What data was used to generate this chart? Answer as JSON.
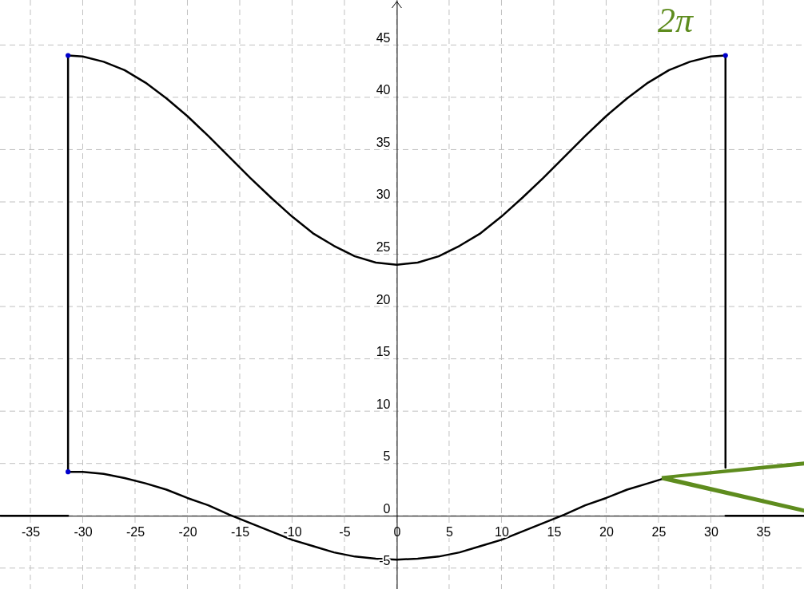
{
  "chart_data": {
    "type": "line",
    "xlim": [
      -37.9,
      38.9
    ],
    "ylim": [
      -7.0,
      49.3
    ],
    "xticks": [
      -35,
      -30,
      -25,
      -20,
      -15,
      -10,
      -5,
      0,
      5,
      10,
      15,
      20,
      25,
      30,
      35
    ],
    "yticks": [
      -5,
      0,
      5,
      10,
      15,
      20,
      25,
      30,
      35,
      40,
      45
    ],
    "grid": true,
    "line_style": "solid",
    "annotations": [
      "2π"
    ],
    "series": [
      {
        "color": "#000000",
        "x": [
          -31.4,
          -30,
          -28,
          -26,
          -24,
          -22,
          -20,
          -18,
          -16,
          -14,
          -12,
          -10,
          -8,
          -6,
          -4,
          -2,
          0,
          2,
          4,
          6,
          8,
          10,
          12,
          14,
          16,
          18,
          20,
          22,
          24,
          26,
          28,
          30,
          31.4
        ],
        "values": [
          44.0,
          43.9,
          43.4,
          42.6,
          41.4,
          39.9,
          38.2,
          36.3,
          34.3,
          32.3,
          30.4,
          28.6,
          27.0,
          25.8,
          24.8,
          24.2,
          24.0,
          24.2,
          24.8,
          25.8,
          27.0,
          28.6,
          30.4,
          32.3,
          34.3,
          36.3,
          38.2,
          39.9,
          41.4,
          42.6,
          43.4,
          43.9,
          44.0
        ]
      },
      {
        "color": "#000000",
        "x": [
          -31.4,
          -30,
          -28,
          -26,
          -24,
          -22,
          -20,
          -18,
          -16,
          -14,
          -12,
          -10,
          -8,
          -6,
          -4,
          -2,
          0,
          2,
          4,
          6,
          8,
          10,
          12,
          14,
          16,
          18,
          20,
          22,
          24,
          25.3
        ],
        "values": [
          4.2,
          4.2,
          4.0,
          3.6,
          3.1,
          2.5,
          1.7,
          1.0,
          0.1,
          -0.7,
          -1.5,
          -2.3,
          -2.9,
          -3.5,
          -3.9,
          -4.1,
          -4.2,
          -4.1,
          -3.9,
          -3.5,
          -2.9,
          -2.3,
          -1.5,
          -0.7,
          0.1,
          1.0,
          1.7,
          2.5,
          3.1,
          3.5
        ]
      },
      {
        "color": "#000000",
        "x": [
          -31.4,
          -31.4
        ],
        "values": [
          4.2,
          44.0
        ]
      },
      {
        "color": "#000000",
        "x": [
          31.4,
          31.4
        ],
        "values": [
          4.6,
          44.0
        ]
      },
      {
        "color": "#000000",
        "x": [
          -37.9,
          -31.4
        ],
        "values": [
          0,
          0
        ]
      },
      {
        "color": "#000000",
        "x": [
          31.4,
          38.9
        ],
        "values": [
          0,
          0
        ]
      },
      {
        "type": "scatter",
        "marker": "circle",
        "color": "#0000cc",
        "x": [
          -31.4,
          -31.4,
          31.4
        ],
        "values": [
          44.0,
          4.2,
          44.0
        ]
      }
    ]
  }
}
